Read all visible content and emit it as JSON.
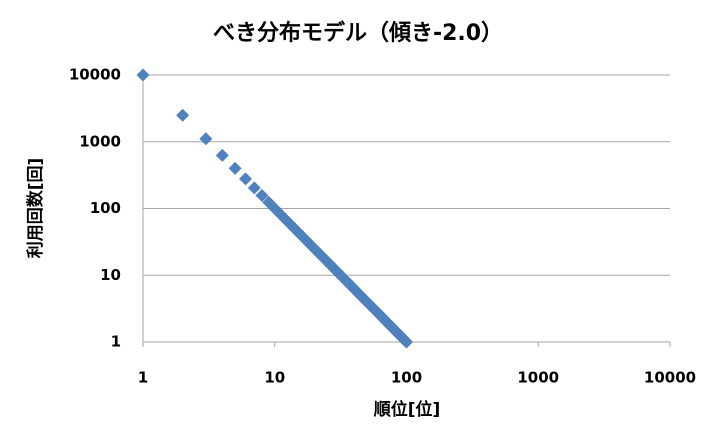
{
  "chart_data": {
    "type": "scatter",
    "title": "べき分布モデル（傾き-2.0）",
    "x_label": "順位[位]",
    "y_label": "利用回数[回]",
    "xscale": "log",
    "yscale": "log",
    "grid": "y",
    "color": "#4f81bd",
    "xlim": [
      1,
      10000
    ],
    "ylim": [
      1,
      10000
    ],
    "xticks": [
      1,
      10,
      100,
      1000,
      10000
    ],
    "yticks": [
      1,
      10,
      100,
      1000,
      10000
    ],
    "x": [
      1,
      2,
      3,
      4,
      5,
      6,
      7,
      8,
      9,
      10,
      11,
      12,
      13,
      14,
      15,
      16,
      17,
      18,
      19,
      20,
      21,
      22,
      23,
      24,
      25,
      26,
      27,
      28,
      29,
      30,
      31,
      32,
      33,
      34,
      35,
      36,
      37,
      38,
      39,
      40,
      41,
      42,
      43,
      44,
      45,
      46,
      47,
      48,
      49,
      50,
      51,
      52,
      53,
      54,
      55,
      56,
      57,
      58,
      59,
      60,
      61,
      62,
      63,
      64,
      65,
      66,
      67,
      68,
      69,
      70,
      71,
      72,
      73,
      74,
      75,
      76,
      77,
      78,
      79,
      80,
      81,
      82,
      83,
      84,
      85,
      86,
      87,
      88,
      89,
      90,
      91,
      92,
      93,
      94,
      95,
      96,
      97,
      98,
      99,
      100
    ],
    "values": [
      10000,
      2500,
      1111,
      625,
      400,
      277.8,
      204.1,
      156.3,
      123.5,
      100,
      82.64,
      69.44,
      59.17,
      51.02,
      44.44,
      39.06,
      34.6,
      30.86,
      27.7,
      25,
      22.68,
      20.66,
      18.9,
      17.36,
      16,
      14.79,
      13.72,
      12.76,
      11.89,
      11.11,
      10.41,
      9.766,
      9.183,
      8.651,
      8.163,
      7.716,
      7.305,
      6.925,
      6.575,
      6.25,
      5.949,
      5.669,
      5.408,
      5.165,
      4.938,
      4.726,
      4.527,
      4.34,
      4.165,
      4,
      3.845,
      3.698,
      3.56,
      3.429,
      3.306,
      3.189,
      3.078,
      2.973,
      2.873,
      2.778,
      2.687,
      2.601,
      2.52,
      2.441,
      2.367,
      2.296,
      2.228,
      2.163,
      2.1,
      2.041,
      1.984,
      1.929,
      1.877,
      1.826,
      1.778,
      1.731,
      1.687,
      1.644,
      1.602,
      1.563,
      1.524,
      1.487,
      1.452,
      1.417,
      1.384,
      1.352,
      1.321,
      1.291,
      1.262,
      1.235,
      1.208,
      1.181,
      1.156,
      1.132,
      1.108,
      1.085,
      1.063,
      1.041,
      1.02,
      1
    ]
  }
}
